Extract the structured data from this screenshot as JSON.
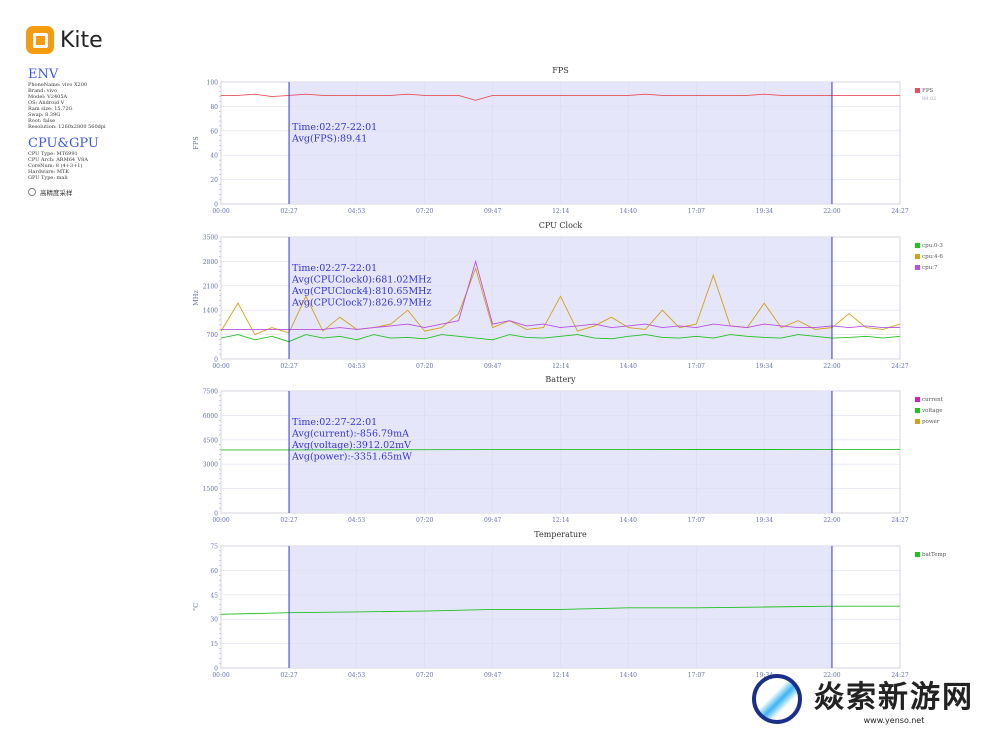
{
  "app": {
    "logo_text": "Kite"
  },
  "env": {
    "title": "ENV",
    "rows": [
      "PhoneName: vivo X200",
      "Brand: vivo",
      "Model: V2405A",
      "OS: Android V",
      "Ram size: 15.72G",
      "Swap: 8.39G",
      "Root: false",
      "Resolution: 1260x2800 560dpi"
    ]
  },
  "cpu_gpu": {
    "title": "CPU&GPU",
    "rows": [
      "CPU Type: MT6991",
      "CPU Arch: ARM64_V8A",
      "CoreNum: 8 (4+3+1)",
      "Hardware: MTK",
      "GPU Type: mali"
    ]
  },
  "high_precision": {
    "label": "高精度采样",
    "checked": false
  },
  "watermark": {
    "text": "焱索新游网",
    "url": "www.yenso.net"
  },
  "selection": {
    "start": "02:27",
    "end": "22:00",
    "color": "#e6e6fa"
  },
  "chart_data": [
    {
      "type": "line",
      "title": "FPS",
      "ylabel": "FPS",
      "ylim": [
        0,
        100
      ],
      "yticks": [
        0,
        20,
        40,
        60,
        80,
        100
      ],
      "xticks": [
        "00:00",
        "02:27",
        "04:53",
        "07:20",
        "09:47",
        "12:14",
        "14:40",
        "17:07",
        "19:34",
        "22:00",
        "24:27"
      ],
      "series": [
        {
          "name": "FPS",
          "color": "#e8505b",
          "values": [
            89,
            89,
            90,
            88,
            89,
            90,
            89,
            89,
            89,
            89,
            89,
            90,
            89,
            89,
            89,
            85,
            89,
            89,
            89,
            89,
            89,
            89,
            89,
            89,
            89,
            90,
            89,
            89,
            89,
            89,
            89,
            89,
            90,
            89,
            89,
            89,
            89,
            89,
            89,
            89,
            89
          ]
        }
      ],
      "legend_extra": "89.02",
      "annotation": [
        "Time:02:27-22:01",
        "Avg(FPS):89.41"
      ]
    },
    {
      "type": "line",
      "title": "CPU Clock",
      "ylabel": "MHz",
      "ylim": [
        0,
        3500
      ],
      "yticks": [
        0,
        700,
        1400,
        2100,
        2800,
        3500
      ],
      "xticks": [
        "00:00",
        "02:27",
        "04:53",
        "07:20",
        "09:47",
        "12:14",
        "14:40",
        "17:07",
        "19:34",
        "22:00",
        "24:27"
      ],
      "series": [
        {
          "name": "cpu:0-3",
          "color": "#22c022",
          "values": [
            600,
            700,
            550,
            650,
            500,
            700,
            600,
            650,
            550,
            700,
            600,
            620,
            580,
            700,
            650,
            600,
            550,
            700,
            620,
            600,
            650,
            700,
            600,
            580,
            650,
            700,
            620,
            600,
            650,
            600,
            700,
            650,
            620,
            600,
            700,
            650,
            600,
            620,
            650,
            600,
            650
          ]
        },
        {
          "name": "cpu:4-6",
          "color": "#d4a017",
          "values": [
            800,
            1600,
            700,
            900,
            750,
            1800,
            800,
            1200,
            850,
            900,
            1000,
            1400,
            800,
            900,
            1300,
            2600,
            900,
            1100,
            850,
            900,
            1800,
            800,
            950,
            1200,
            900,
            850,
            1400,
            900,
            1000,
            2400,
            950,
            900,
            1600,
            900,
            1100,
            850,
            900,
            1300,
            900,
            850,
            1000
          ]
        },
        {
          "name": "cpu:7",
          "color": "#b84fe0",
          "values": [
            850,
            850,
            850,
            850,
            850,
            850,
            850,
            900,
            850,
            900,
            950,
            1000,
            900,
            1000,
            1100,
            2800,
            1000,
            1100,
            950,
            1000,
            900,
            950,
            1000,
            900,
            950,
            1000,
            900,
            950,
            900,
            1000,
            950,
            900,
            1000,
            950,
            900,
            900,
            950,
            900,
            950,
            900,
            900
          ]
        }
      ],
      "annotation": [
        "Time:02:27-22:01",
        "Avg(CPUClock0):681.02MHz",
        "Avg(CPUClock4):810.65MHz",
        "Avg(CPUClock7):826.97MHz"
      ]
    },
    {
      "type": "line",
      "title": "Battery",
      "ylabel": "",
      "ylim": [
        0,
        7500
      ],
      "yticks": [
        0,
        1500,
        3000,
        4500,
        6000,
        7500
      ],
      "xticks": [
        "00:00",
        "02:27",
        "04:53",
        "07:20",
        "09:47",
        "12:14",
        "14:40",
        "17:07",
        "19:34",
        "22:00",
        "24:27"
      ],
      "series": [
        {
          "name": "current",
          "color": "#d020c0",
          "values": []
        },
        {
          "name": "voltage",
          "color": "#22c022",
          "values": [
            3880,
            3880,
            3885,
            3890,
            3895,
            3900,
            3900,
            3905,
            3905,
            3910,
            3910
          ]
        },
        {
          "name": "power",
          "color": "#d4a017",
          "values": []
        }
      ],
      "annotation": [
        "Time:02:27-22:01",
        "Avg(current):-856.79mA",
        "Avg(voltage):3912.02mV",
        "Avg(power):-3351.65mW"
      ]
    },
    {
      "type": "line",
      "title": "Temperature",
      "ylabel": "°C",
      "ylim": [
        0,
        75
      ],
      "yticks": [
        0,
        15,
        30,
        45,
        60,
        75
      ],
      "xticks": [
        "00:00",
        "02:27",
        "04:53",
        "07:20",
        "09:47",
        "12:14",
        "14:40",
        "17:07",
        "19:34",
        "22:00",
        "24:27"
      ],
      "series": [
        {
          "name": "batTemp",
          "color": "#22c022",
          "values": [
            33,
            34,
            34.5,
            35,
            36,
            36,
            37,
            37,
            37.5,
            38,
            38
          ]
        }
      ],
      "annotation": []
    }
  ]
}
